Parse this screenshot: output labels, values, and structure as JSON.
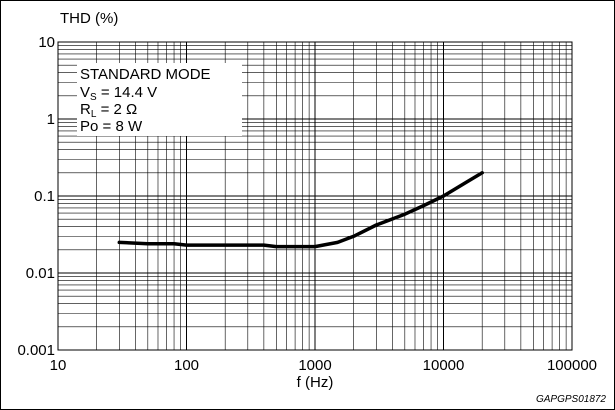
{
  "chart_data": {
    "type": "line",
    "scale": {
      "x": "log",
      "y": "log"
    },
    "xlim": [
      10,
      100000
    ],
    "ylim": [
      0.001,
      10
    ],
    "grid": true,
    "y_axis_title": "THD (%)",
    "x_axis_title": "f (Hz)",
    "x_ticks": [
      "10",
      "100",
      "1000",
      "10000",
      "100000"
    ],
    "y_ticks": [
      "0.001",
      "0.01",
      "0.1",
      "1",
      "10"
    ],
    "legend_lines": [
      "STANDARD MODE",
      "VS = 14.4 V",
      "RL = 2 Ω",
      "Po = 8 W"
    ],
    "legend_parts": {
      "mode": "STANDARD MODE",
      "vs_main": "V",
      "vs_sub": "S",
      "vs_rest": " = 14.4 V",
      "rl_main": "R",
      "rl_sub": "L",
      "rl_rest": " = 2 Ω",
      "po": "Po = 8 W"
    },
    "series": [
      {
        "x": [
          30,
          50,
          80,
          100,
          200,
          400,
          500,
          700,
          1000,
          1500,
          2000,
          3000,
          5000,
          7000,
          10000,
          15000,
          20000
        ],
        "y": [
          0.025,
          0.024,
          0.024,
          0.023,
          0.023,
          0.023,
          0.022,
          0.022,
          0.022,
          0.025,
          0.03,
          0.042,
          0.058,
          0.075,
          0.1,
          0.15,
          0.2
        ]
      }
    ],
    "figure_code": "GAPGPS01872"
  }
}
